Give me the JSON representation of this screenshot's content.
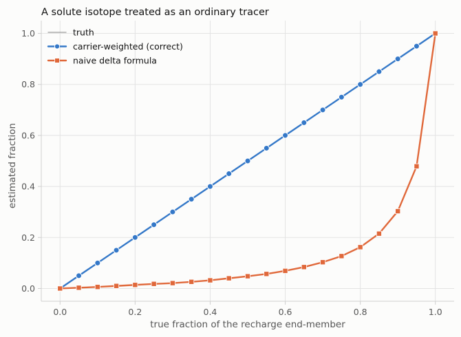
{
  "chart_data": {
    "type": "line",
    "title": "A solute isotope treated as an ordinary tracer",
    "xlabel": "true fraction of the recharge end-member",
    "ylabel": "estimated fraction",
    "xlim": [
      -0.05,
      1.05
    ],
    "ylim": [
      -0.05,
      1.05
    ],
    "xticks": [
      0.0,
      0.2,
      0.4,
      0.6,
      0.8,
      1.0
    ],
    "yticks": [
      0.0,
      0.2,
      0.4,
      0.6,
      0.8,
      1.0
    ],
    "xtick_labels": [
      "0.0",
      "0.2",
      "0.4",
      "0.6",
      "0.8",
      "1.0"
    ],
    "ytick_labels": [
      "0.0",
      "0.2",
      "0.4",
      "0.6",
      "0.8",
      "1.0"
    ],
    "grid": true,
    "legend_position": "top-left",
    "x": [
      0.0,
      0.05,
      0.1,
      0.15,
      0.2,
      0.25,
      0.3,
      0.35,
      0.4,
      0.45,
      0.5,
      0.55,
      0.6,
      0.65,
      0.7,
      0.75,
      0.8,
      0.85,
      0.9,
      0.95,
      1.0
    ],
    "series": [
      {
        "name": "truth",
        "color": "#9a9a9a",
        "marker": "none",
        "x": [
          0.0,
          1.0
        ],
        "values": [
          0.0,
          1.0
        ]
      },
      {
        "name": "carrier-weighted (correct)",
        "color": "#3478c8",
        "marker": "circle",
        "values": [
          0.0,
          0.05,
          0.1,
          0.15,
          0.2,
          0.25,
          0.3,
          0.35,
          0.4,
          0.45,
          0.5,
          0.55,
          0.6,
          0.65,
          0.7,
          0.75,
          0.8,
          0.85,
          0.9,
          0.95,
          1.0
        ]
      },
      {
        "name": "naive delta formula",
        "color": "#e0683a",
        "marker": "square",
        "values": [
          0.0,
          0.003,
          0.006,
          0.01,
          0.014,
          0.018,
          0.021,
          0.026,
          0.032,
          0.04,
          0.048,
          0.057,
          0.069,
          0.084,
          0.103,
          0.127,
          0.162,
          0.215,
          0.303,
          0.479,
          1.0
        ]
      }
    ]
  }
}
